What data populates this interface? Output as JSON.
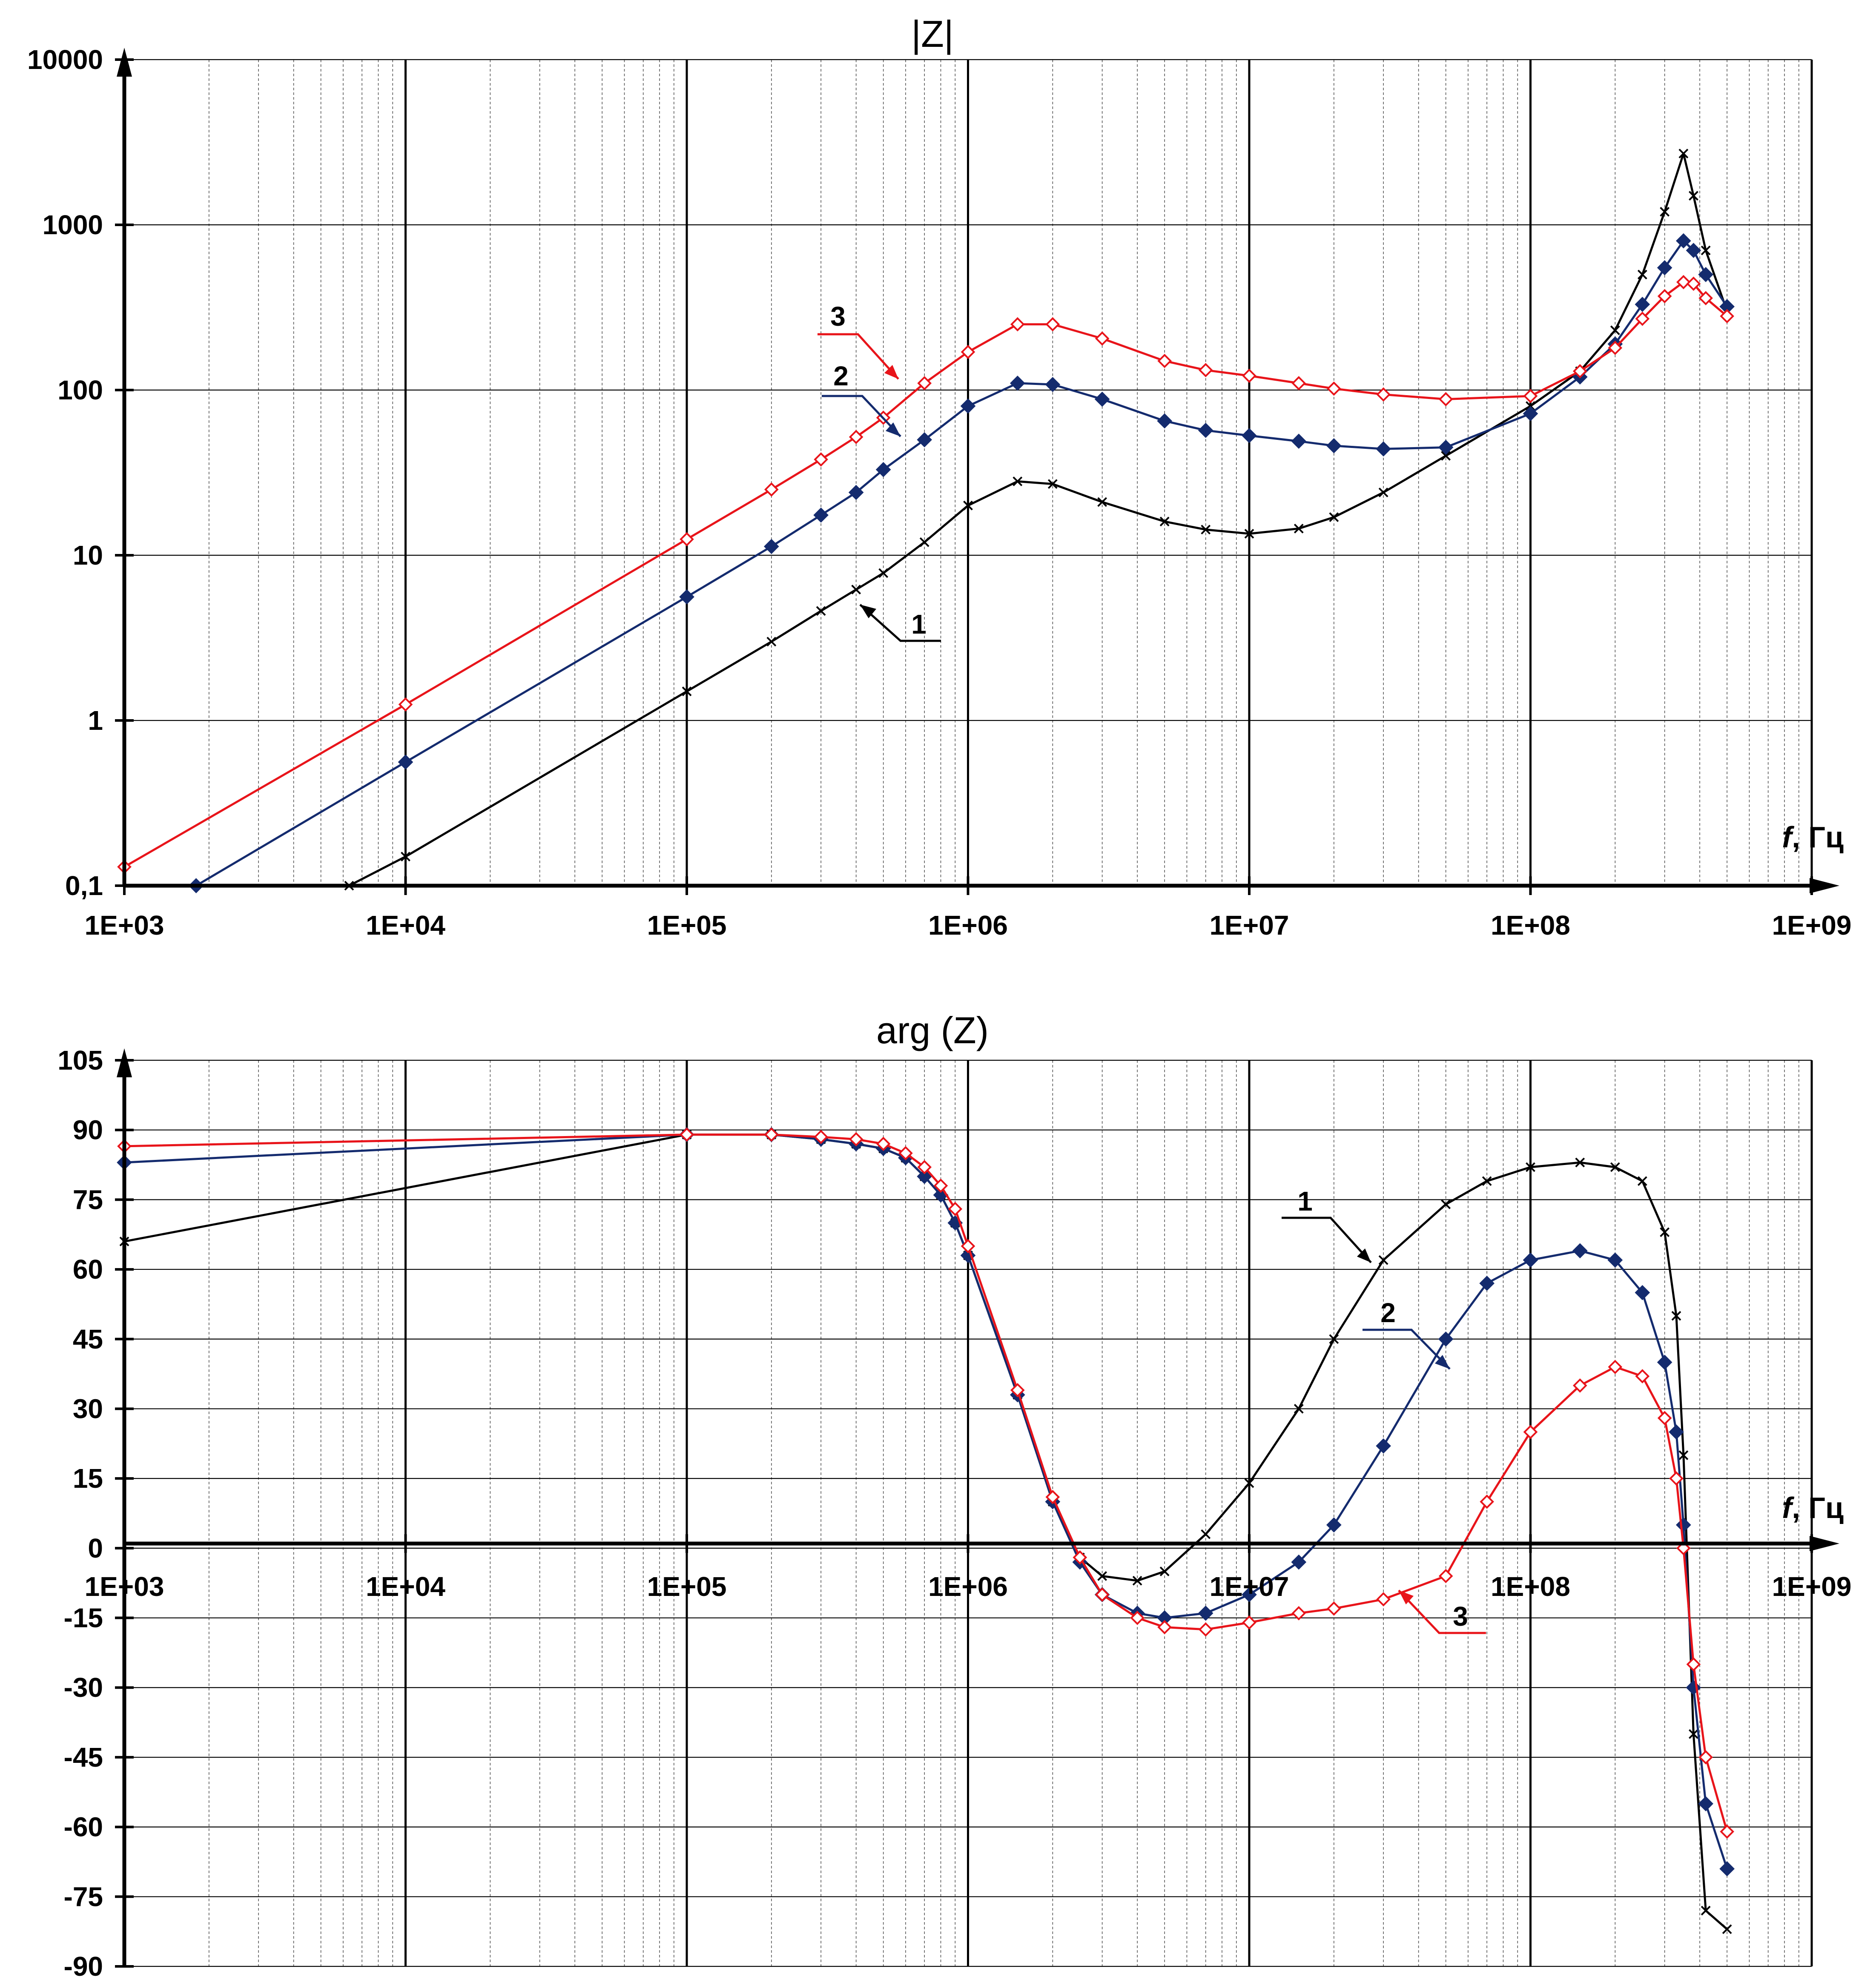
{
  "chart_data": [
    {
      "type": "line",
      "title": "|Z|",
      "xlabel_italic": "f",
      "xlabel_rest": ", Гц",
      "x_scale": "log",
      "y_scale": "log",
      "xlim": [
        1000,
        1000000000
      ],
      "ylim": [
        0.1,
        10000
      ],
      "x_tick_labels": [
        "1E+03",
        "1E+04",
        "1E+05",
        "1E+06",
        "1E+07",
        "1E+08",
        "1E+09"
      ],
      "y_tick_labels": [
        "0,1",
        "1",
        "10",
        "100",
        "1000",
        "10000"
      ],
      "grid": true,
      "series": [
        {
          "name": "1",
          "color": "#000000",
          "marker": "x",
          "x": [
            6300,
            10000,
            100000,
            200000,
            300000,
            400000,
            500000,
            700000,
            1000000,
            1500000,
            2000000,
            3000000,
            5000000,
            7000000,
            10000000,
            15000000,
            20000000,
            30000000,
            50000000,
            100000000,
            150000000,
            200000000,
            250000000,
            300000000,
            350000000,
            380000000,
            420000000,
            500000000
          ],
          "values": [
            0.1,
            0.15,
            1.5,
            3.0,
            4.6,
            6.2,
            7.8,
            12,
            20,
            28,
            27,
            21,
            16,
            14.3,
            13.5,
            14.5,
            17,
            24,
            40,
            80,
            130,
            230,
            500,
            1200,
            2700,
            1500,
            700,
            300
          ]
        },
        {
          "name": "2",
          "color": "#142B6E",
          "marker": "diamond-filled",
          "x": [
            1800,
            10000,
            100000,
            200000,
            300000,
            400000,
            500000,
            700000,
            1000000,
            1500000,
            2000000,
            3000000,
            5000000,
            7000000,
            10000000,
            15000000,
            20000000,
            30000000,
            50000000,
            100000000,
            150000000,
            200000000,
            250000000,
            300000000,
            350000000,
            380000000,
            420000000,
            500000000
          ],
          "values": [
            0.1,
            0.56,
            5.6,
            11.3,
            17.5,
            24,
            33,
            50,
            80,
            110,
            108,
            88,
            65,
            57,
            53,
            49,
            46,
            44,
            45,
            72,
            120,
            190,
            330,
            550,
            800,
            700,
            500,
            320
          ]
        },
        {
          "name": "3",
          "color": "#E8141A",
          "marker": "diamond-open",
          "x": [
            1000,
            10000,
            100000,
            200000,
            300000,
            400000,
            500000,
            700000,
            1000000,
            1500000,
            2000000,
            3000000,
            5000000,
            7000000,
            10000000,
            15000000,
            20000000,
            30000000,
            50000000,
            100000000,
            150000000,
            200000000,
            250000000,
            300000000,
            350000000,
            380000000,
            420000000,
            500000000
          ],
          "values": [
            0.13,
            1.25,
            12.5,
            25,
            38,
            52,
            68,
            110,
            170,
            250,
            250,
            205,
            150,
            132,
            122,
            110,
            102,
            94,
            88,
            92,
            130,
            180,
            270,
            370,
            450,
            440,
            360,
            280
          ]
        }
      ],
      "callouts": [
        "1",
        "2",
        "3"
      ]
    },
    {
      "type": "line",
      "title": "arg (Z)",
      "xlabel_italic": "f",
      "xlabel_rest": ", Гц",
      "x_scale": "log",
      "y_scale": "linear",
      "xlim": [
        1000,
        1000000000
      ],
      "ylim": [
        -90,
        105
      ],
      "x_tick_labels": [
        "1E+03",
        "1E+04",
        "1E+05",
        "1E+06",
        "1E+07",
        "1E+08",
        "1E+09"
      ],
      "y_tick_labels": [
        "105",
        "90",
        "75",
        "60",
        "45",
        "30",
        "15",
        "0",
        "-15",
        "-30",
        "-45",
        "-60",
        "-75",
        "-90"
      ],
      "grid": true,
      "series": [
        {
          "name": "1",
          "color": "#000000",
          "marker": "x",
          "x": [
            1000,
            100000,
            200000,
            300000,
            400000,
            500000,
            600000,
            700000,
            800000,
            900000,
            1000000,
            1500000,
            2000000,
            2500000,
            3000000,
            4000000,
            5000000,
            7000000,
            10000000,
            15000000,
            20000000,
            30000000,
            50000000,
            70000000,
            100000000,
            150000000,
            200000000,
            250000000,
            300000000,
            330000000,
            350000000,
            380000000,
            420000000,
            500000000
          ],
          "values": [
            66,
            89,
            89,
            88,
            87,
            86,
            84,
            80,
            76,
            70,
            63,
            33,
            10,
            -2,
            -6,
            -7,
            -5,
            3,
            14,
            30,
            45,
            62,
            74,
            79,
            82,
            83,
            82,
            79,
            68,
            50,
            20,
            -40,
            -78,
            -82
          ]
        },
        {
          "name": "2",
          "color": "#142B6E",
          "marker": "diamond-filled",
          "x": [
            1000,
            100000,
            200000,
            300000,
            400000,
            500000,
            600000,
            700000,
            800000,
            900000,
            1000000,
            1500000,
            2000000,
            2500000,
            3000000,
            4000000,
            5000000,
            7000000,
            10000000,
            15000000,
            20000000,
            30000000,
            50000000,
            70000000,
            100000000,
            150000000,
            200000000,
            250000000,
            300000000,
            330000000,
            350000000,
            380000000,
            420000000,
            500000000
          ],
          "values": [
            83,
            89,
            89,
            88,
            87,
            86,
            84,
            80,
            76,
            70,
            63,
            33,
            10,
            -3,
            -10,
            -14,
            -15,
            -14,
            -10,
            -3,
            5,
            22,
            45,
            57,
            62,
            64,
            62,
            55,
            40,
            25,
            5,
            -30,
            -55,
            -69
          ]
        },
        {
          "name": "3",
          "color": "#E8141A",
          "marker": "diamond-open",
          "x": [
            1000,
            100000,
            200000,
            300000,
            400000,
            500000,
            600000,
            700000,
            800000,
            900000,
            1000000,
            1500000,
            2000000,
            2500000,
            3000000,
            4000000,
            5000000,
            7000000,
            10000000,
            15000000,
            20000000,
            30000000,
            50000000,
            70000000,
            100000000,
            150000000,
            200000000,
            250000000,
            300000000,
            330000000,
            350000000,
            380000000,
            420000000,
            500000000
          ],
          "values": [
            86.5,
            89,
            89,
            88.5,
            88,
            87,
            85,
            82,
            78,
            73,
            65,
            34,
            11,
            -2,
            -10,
            -15,
            -17,
            -17.5,
            -16,
            -14,
            -13,
            -11,
            -6,
            10,
            25,
            35,
            39,
            37,
            28,
            15,
            0,
            -25,
            -45,
            -61
          ]
        }
      ],
      "callouts": [
        "1",
        "2",
        "3"
      ]
    }
  ]
}
